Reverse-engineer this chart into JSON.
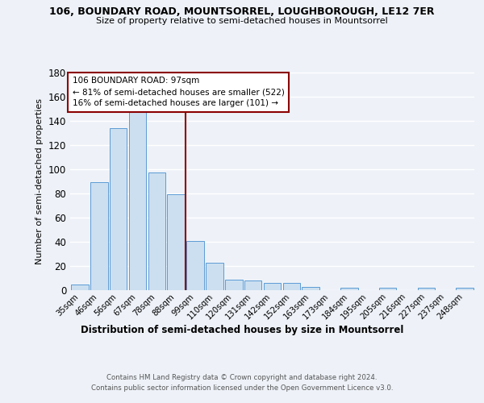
{
  "title1": "106, BOUNDARY ROAD, MOUNTSORREL, LOUGHBOROUGH, LE12 7ER",
  "title2": "Size of property relative to semi-detached houses in Mountsorrel",
  "xlabel": "Distribution of semi-detached houses by size in Mountsorrel",
  "ylabel": "Number of semi-detached properties",
  "footnote1": "Contains HM Land Registry data © Crown copyright and database right 2024.",
  "footnote2": "Contains public sector information licensed under the Open Government Licence v3.0.",
  "bin_labels": [
    "35sqm",
    "46sqm",
    "56sqm",
    "67sqm",
    "78sqm",
    "88sqm",
    "99sqm",
    "110sqm",
    "120sqm",
    "131sqm",
    "142sqm",
    "152sqm",
    "163sqm",
    "173sqm",
    "184sqm",
    "195sqm",
    "205sqm",
    "216sqm",
    "227sqm",
    "237sqm",
    "248sqm"
  ],
  "bar_heights": [
    5,
    89,
    134,
    147,
    97,
    79,
    41,
    23,
    9,
    8,
    6,
    6,
    3,
    0,
    2,
    0,
    2,
    0,
    2,
    0,
    2
  ],
  "bar_color": "#ccdff0",
  "bar_edge_color": "#5b9bd5",
  "vline_color": "#8b0000",
  "annotation_title": "106 BOUNDARY ROAD: 97sqm",
  "annotation_line1": "← 81% of semi-detached houses are smaller (522)",
  "annotation_line2": "16% of semi-detached houses are larger (101) →",
  "annotation_box_color": "#8b0000",
  "ylim": [
    0,
    180
  ],
  "yticks": [
    0,
    20,
    40,
    60,
    80,
    100,
    120,
    140,
    160,
    180
  ],
  "background_color": "#eef2f8"
}
